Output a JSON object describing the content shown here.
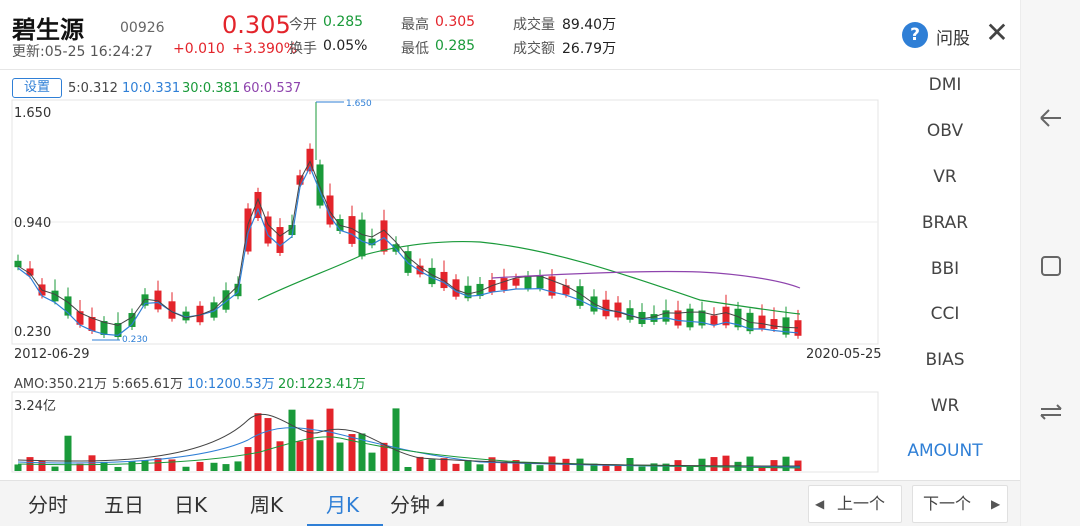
{
  "header": {
    "name": "碧生源",
    "code": "00926",
    "update_time": "更新:05-25 16:24:27",
    "price": "0.305",
    "change": "+0.010",
    "change_pct": "+3.390%",
    "stats": [
      {
        "label": "今开",
        "value": "0.285",
        "tone": "green"
      },
      {
        "label": "换手",
        "value": "0.05%",
        "tone": "dark"
      },
      {
        "label": "最高",
        "value": "0.305",
        "tone": "red"
      },
      {
        "label": "最低",
        "value": "0.285",
        "tone": "green"
      },
      {
        "label": "成交量",
        "value": "89.40万",
        "tone": "dark"
      },
      {
        "label": "成交额",
        "value": "26.79万",
        "tone": "dark"
      }
    ],
    "help_icon": "?",
    "help_label": "问股",
    "close_icon": "✕"
  },
  "chart": {
    "settings_label": "设置",
    "ma_labels": [
      {
        "text": "5:0.312",
        "color": "#444444"
      },
      {
        "text": "10:0.331",
        "color": "#2f7fd6"
      },
      {
        "text": "30:0.381",
        "color": "#1a9a3a"
      },
      {
        "text": "60:0.537",
        "color": "#8e44ad"
      }
    ],
    "y_labels": [
      "1.650",
      "0.940",
      "0.230"
    ],
    "max_marker": "1.650",
    "min_marker": "0.230",
    "start_date": "2012-06-29",
    "end_date": "2020-05-25",
    "amo_labels": [
      {
        "text": "AMO:350.21万",
        "color": "#444444"
      },
      {
        "text": "5:665.61万",
        "color": "#444444"
      },
      {
        "text": "10:1200.53万",
        "color": "#2f7fd6"
      },
      {
        "text": "20:1223.41万",
        "color": "#1a9a3a"
      }
    ],
    "amo_max": "3.24亿"
  },
  "indicators": [
    "DMI",
    "OBV",
    "VR",
    "BRAR",
    "BBI",
    "CCI",
    "BIAS",
    "WR",
    "AMOUNT"
  ],
  "active_indicator": "AMOUNT",
  "tabs": [
    "分时",
    "五日",
    "日K",
    "周K",
    "月K",
    "分钟"
  ],
  "active_tab": "月K",
  "nav": {
    "prev_label": "上一个",
    "next_label": "下一个",
    "prev_icon": "◀",
    "next_icon": "▶"
  },
  "colors": {
    "up": "#e3242b",
    "down": "#1a9a3a",
    "accent": "#2f7fd6",
    "ma60": "#8e44ad"
  }
}
